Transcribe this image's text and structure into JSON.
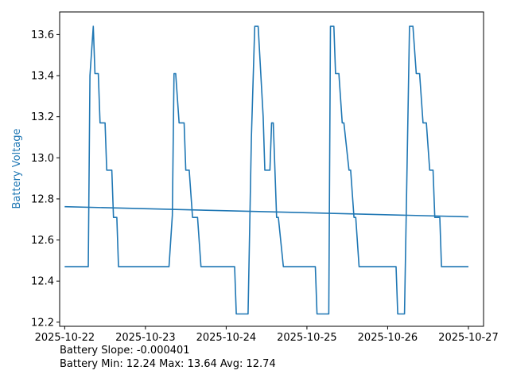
{
  "chart_data": {
    "type": "line",
    "title": "",
    "xlabel": "",
    "ylabel": "Battery Voltage",
    "ylabel_color": "#1f77b4",
    "series_color": "#1f77b4",
    "xlim": [
      "2025-10-21T22:30",
      "2025-10-27T04:30"
    ],
    "ylim": [
      12.18,
      13.71
    ],
    "grid": false,
    "legend": "none",
    "x_ticks": [
      "2025-10-22",
      "2025-10-23",
      "2025-10-24",
      "2025-10-25",
      "2025-10-26",
      "2025-10-27"
    ],
    "y_ticks": [
      "12.2",
      "12.4",
      "12.6",
      "12.8",
      "13.0",
      "13.2",
      "13.4",
      "13.6"
    ],
    "series": [
      {
        "x": [
          "2025-10-22T00:00",
          "2025-10-22T07:00",
          "2025-10-22T07:30",
          "2025-10-22T08:30",
          "2025-10-22T09:00",
          "2025-10-22T10:00",
          "2025-10-22T10:30",
          "2025-10-22T12:00",
          "2025-10-22T12:30",
          "2025-10-22T14:00",
          "2025-10-22T14:30",
          "2025-10-22T15:30",
          "2025-10-22T16:00",
          "2025-10-22T17:30",
          "2025-10-23T07:00",
          "2025-10-23T08:00",
          "2025-10-23T08:30",
          "2025-10-23T09:00",
          "2025-10-23T10:00",
          "2025-10-23T11:30",
          "2025-10-23T12:00",
          "2025-10-23T13:00",
          "2025-10-23T14:00",
          "2025-10-23T15:30",
          "2025-10-23T16:30",
          "2025-10-23T17:00",
          "2025-10-24T02:30",
          "2025-10-24T03:00",
          "2025-10-24T06:30",
          "2025-10-24T07:30",
          "2025-10-24T08:30",
          "2025-10-24T09:30",
          "2025-10-24T11:00",
          "2025-10-24T11:30",
          "2025-10-24T13:00",
          "2025-10-24T13:30",
          "2025-10-24T14:00",
          "2025-10-24T15:00",
          "2025-10-24T15:30",
          "2025-10-24T17:00",
          "2025-10-24T17:30",
          "2025-10-24T18:00",
          "2025-10-25T02:30",
          "2025-10-25T03:00",
          "2025-10-25T06:30",
          "2025-10-25T07:00",
          "2025-10-25T08:00",
          "2025-10-25T08:30",
          "2025-10-25T09:30",
          "2025-10-25T10:30",
          "2025-10-25T11:00",
          "2025-10-25T12:30",
          "2025-10-25T13:00",
          "2025-10-25T14:00",
          "2025-10-25T14:30",
          "2025-10-25T15:30",
          "2025-10-25T16:00",
          "2025-10-25T17:30",
          "2025-10-25T18:00",
          "2025-10-26T02:30",
          "2025-10-26T03:00",
          "2025-10-26T05:00",
          "2025-10-26T06:30",
          "2025-10-26T07:30",
          "2025-10-26T08:30",
          "2025-10-26T09:30",
          "2025-10-26T10:30",
          "2025-10-26T11:30",
          "2025-10-26T12:30",
          "2025-10-26T13:30",
          "2025-10-26T14:00",
          "2025-10-26T15:30",
          "2025-10-26T16:00",
          "2025-10-26T17:00",
          "2025-10-27T00:00"
        ],
        "y": [
          12.47,
          12.47,
          13.4,
          13.64,
          13.41,
          13.41,
          13.17,
          13.17,
          12.94,
          12.94,
          12.71,
          12.71,
          12.47,
          12.47,
          12.47,
          12.72,
          13.41,
          13.41,
          13.17,
          13.17,
          12.94,
          12.94,
          12.71,
          12.71,
          12.47,
          12.47,
          12.47,
          12.24,
          12.24,
          13.1,
          13.64,
          13.64,
          13.2,
          12.94,
          12.94,
          13.17,
          13.17,
          12.71,
          12.71,
          12.47,
          12.47,
          12.47,
          12.47,
          12.24,
          12.24,
          13.64,
          13.64,
          13.41,
          13.41,
          13.17,
          13.17,
          12.94,
          12.94,
          12.71,
          12.71,
          12.47,
          12.47,
          12.47,
          12.47,
          12.47,
          12.24,
          12.24,
          13.64,
          13.64,
          13.41,
          13.41,
          13.17,
          13.17,
          12.94,
          12.94,
          12.71,
          12.71,
          12.47,
          12.47,
          12.47
        ]
      },
      {
        "x": [
          "2025-10-22T00:00",
          "2025-10-27T00:00"
        ],
        "y": [
          12.762,
          12.713
        ]
      }
    ],
    "annotations": [
      "Battery Slope: -0.000401",
      "Battery Min: 12.24 Max: 13.64 Avg: 12.74"
    ]
  }
}
